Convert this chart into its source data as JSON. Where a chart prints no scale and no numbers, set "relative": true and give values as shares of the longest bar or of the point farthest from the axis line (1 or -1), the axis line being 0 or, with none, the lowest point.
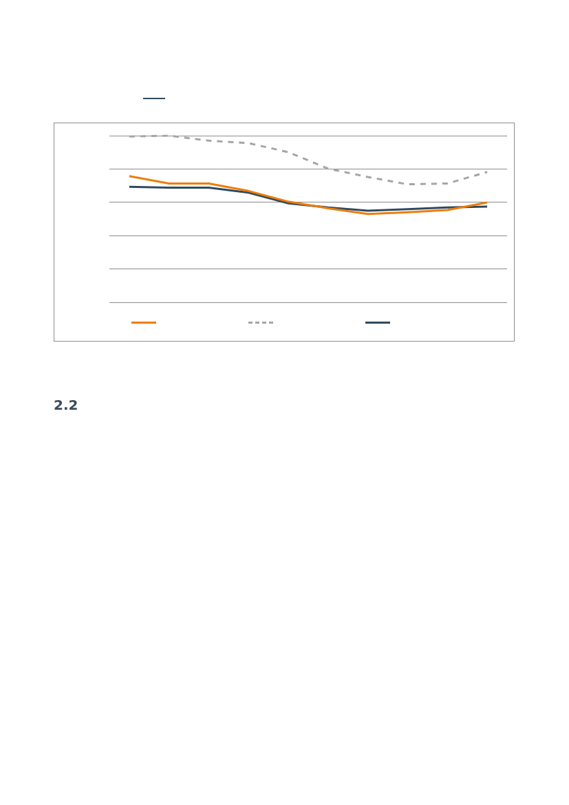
{
  "chart_data": {
    "type": "line",
    "relative": true,
    "categories": [
      null,
      null,
      null,
      null,
      null,
      null,
      null,
      null,
      null,
      null
    ],
    "series": [
      {
        "color": "#ed7d0a",
        "line_style": "solid",
        "values": [
          0.757,
          0.713,
          0.713,
          0.668,
          0.604,
          0.564,
          0.53,
          0.54,
          0.554,
          0.599
        ]
      },
      {
        "color": "#a5a5a5",
        "line_style": "dashed",
        "values": [
          0.995,
          1,
          0.97,
          0.955,
          0.901,
          0.802,
          0.752,
          0.708,
          0.713,
          0.782
        ]
      },
      {
        "color": "#2f4a60",
        "line_style": "solid",
        "values": [
          0.693,
          0.688,
          0.688,
          0.658,
          0.594,
          0.569,
          0.55,
          0.559,
          0.569,
          0.574
        ]
      }
    ],
    "grid": "y",
    "marker": "none",
    "annotations": [
      "2.2"
    ]
  }
}
